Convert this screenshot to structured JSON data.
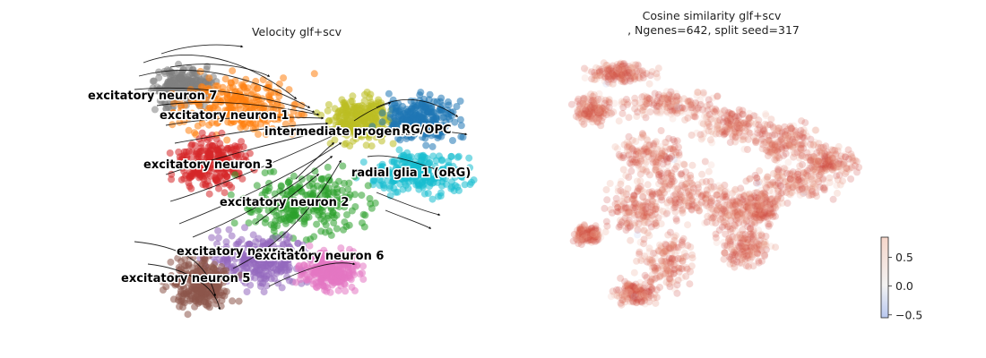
{
  "chart_data": [
    {
      "type": "scatter",
      "title": "Velocity glf+scv",
      "overlay": "velocity streamlines",
      "grid": false,
      "axes_visible": false,
      "clusters": [
        {
          "name": "excitatory neuron 7",
          "color": "#7f7f7f",
          "x": 0.17,
          "y": 0.83
        },
        {
          "name": "excitatory neuron 1",
          "color": "#ff7f0e",
          "x": 0.32,
          "y": 0.77
        },
        {
          "name": "intermediate progenitor",
          "color": "#bcbd22",
          "x": 0.66,
          "y": 0.71
        },
        {
          "name": "RG/OPC",
          "color": "#1f77b4",
          "x": 0.82,
          "y": 0.72
        },
        {
          "name": "excitatory neuron 3",
          "color": "#d62728",
          "x": 0.25,
          "y": 0.56
        },
        {
          "name": "radial glia 1 (oRG)",
          "color": "#17becf",
          "x": 0.82,
          "y": 0.52
        },
        {
          "name": "excitatory neuron 2",
          "color": "#2ca02c",
          "x": 0.51,
          "y": 0.41
        },
        {
          "name": "excitatory neuron 4",
          "color": "#9467bd",
          "x": 0.38,
          "y": 0.21
        },
        {
          "name": "excitatory neuron 6",
          "color": "#e377c2",
          "x": 0.58,
          "y": 0.17
        },
        {
          "name": "excitatory neuron 5",
          "color": "#8c564b",
          "x": 0.22,
          "y": 0.12
        }
      ]
    },
    {
      "type": "scatter",
      "title": "Cosine similarity glf+scv\n, Ngenes=642, split seed=317",
      "grid": false,
      "axes_visible": false,
      "colorbar": {
        "ticks": [
          "0.5",
          "0.0",
          "−0.5"
        ],
        "tick_values": [
          0.5,
          0.0,
          -0.5
        ],
        "range": [
          -0.55,
          0.85
        ],
        "colormap": "coolwarm (upper half)"
      }
    }
  ]
}
